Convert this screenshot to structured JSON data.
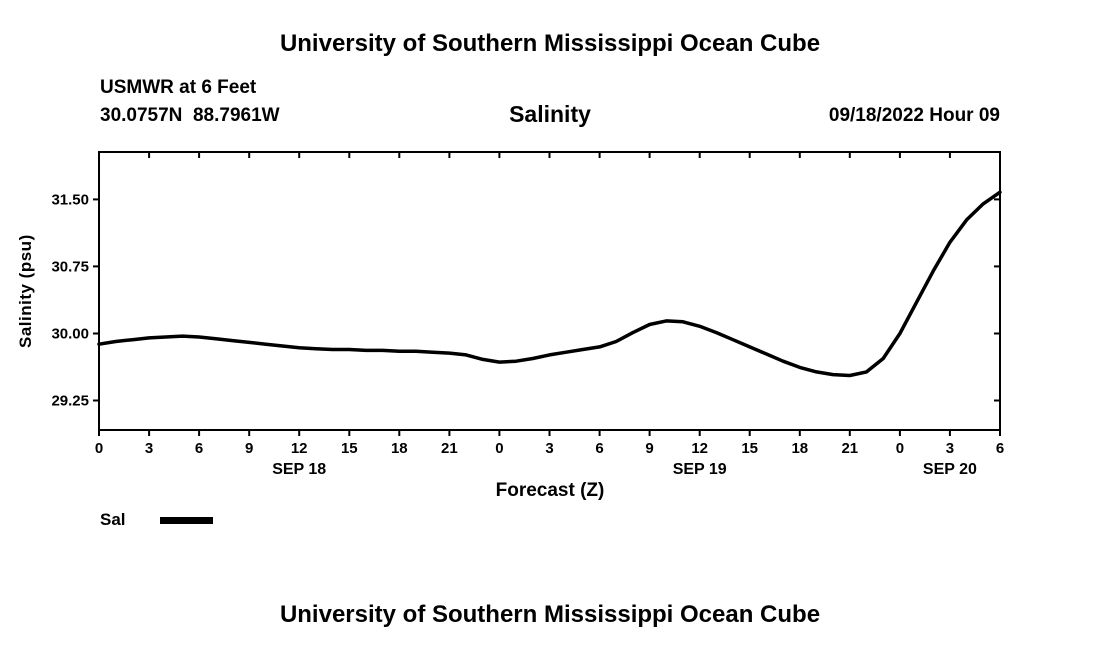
{
  "header": {
    "top_title": "University of Southern Mississippi Ocean Cube",
    "station": "USMWR at 6 Feet",
    "coordinates": "30.0757N  88.7961W",
    "chart_title": "Salinity",
    "datetime": "09/18/2022 Hour 09"
  },
  "legend": {
    "label": "Sal",
    "swatch_color": "#000000"
  },
  "footer": {
    "bottom_title": "University of Southern Mississippi Ocean Cube"
  },
  "chart_data": {
    "type": "line",
    "title": "Salinity",
    "xlabel": "Forecast (Z)",
    "ylabel": "Salinity (psu)",
    "xlim": [
      0,
      54
    ],
    "ylim": [
      28.92,
      32.03
    ],
    "grid": false,
    "legend_position": "below-left",
    "xticks": [
      0,
      3,
      6,
      9,
      12,
      15,
      18,
      21,
      24,
      27,
      30,
      33,
      36,
      39,
      42,
      45,
      48,
      51,
      54
    ],
    "xtick_labels": [
      "0",
      "3",
      "6",
      "9",
      "12",
      "15",
      "18",
      "21",
      "0",
      "3",
      "6",
      "9",
      "12",
      "15",
      "18",
      "21",
      "0",
      "3",
      "6"
    ],
    "yticks": [
      29.25,
      30.0,
      30.75,
      31.5
    ],
    "ytick_labels": [
      "29.25",
      "30.00",
      "30.75",
      "31.50"
    ],
    "date_labels": [
      {
        "label": "SEP 18",
        "hour": 12
      },
      {
        "label": "SEP 19",
        "hour": 36
      },
      {
        "label": "SEP 20",
        "hour": 51
      }
    ],
    "series": [
      {
        "name": "Sal",
        "color": "#000000",
        "line_width": 3.5,
        "x": [
          0,
          1,
          2,
          3,
          4,
          5,
          6,
          7,
          8,
          9,
          10,
          11,
          12,
          13,
          14,
          15,
          16,
          17,
          18,
          19,
          20,
          21,
          22,
          23,
          24,
          25,
          26,
          27,
          28,
          29,
          30,
          31,
          32,
          33,
          34,
          35,
          36,
          37,
          38,
          39,
          40,
          41,
          42,
          43,
          44,
          45,
          46,
          47,
          48,
          49,
          50,
          51,
          52,
          53,
          54
        ],
        "values": [
          29.88,
          29.91,
          29.93,
          29.95,
          29.96,
          29.97,
          29.96,
          29.94,
          29.92,
          29.9,
          29.88,
          29.86,
          29.84,
          29.83,
          29.82,
          29.82,
          29.81,
          29.81,
          29.8,
          29.8,
          29.79,
          29.78,
          29.76,
          29.71,
          29.68,
          29.69,
          29.72,
          29.76,
          29.79,
          29.82,
          29.85,
          29.91,
          30.01,
          30.1,
          30.14,
          30.13,
          30.08,
          30.01,
          29.93,
          29.85,
          29.77,
          29.69,
          29.62,
          29.57,
          29.54,
          29.53,
          29.57,
          29.72,
          30.0,
          30.35,
          30.7,
          31.02,
          31.27,
          31.45,
          31.58
        ]
      }
    ]
  }
}
